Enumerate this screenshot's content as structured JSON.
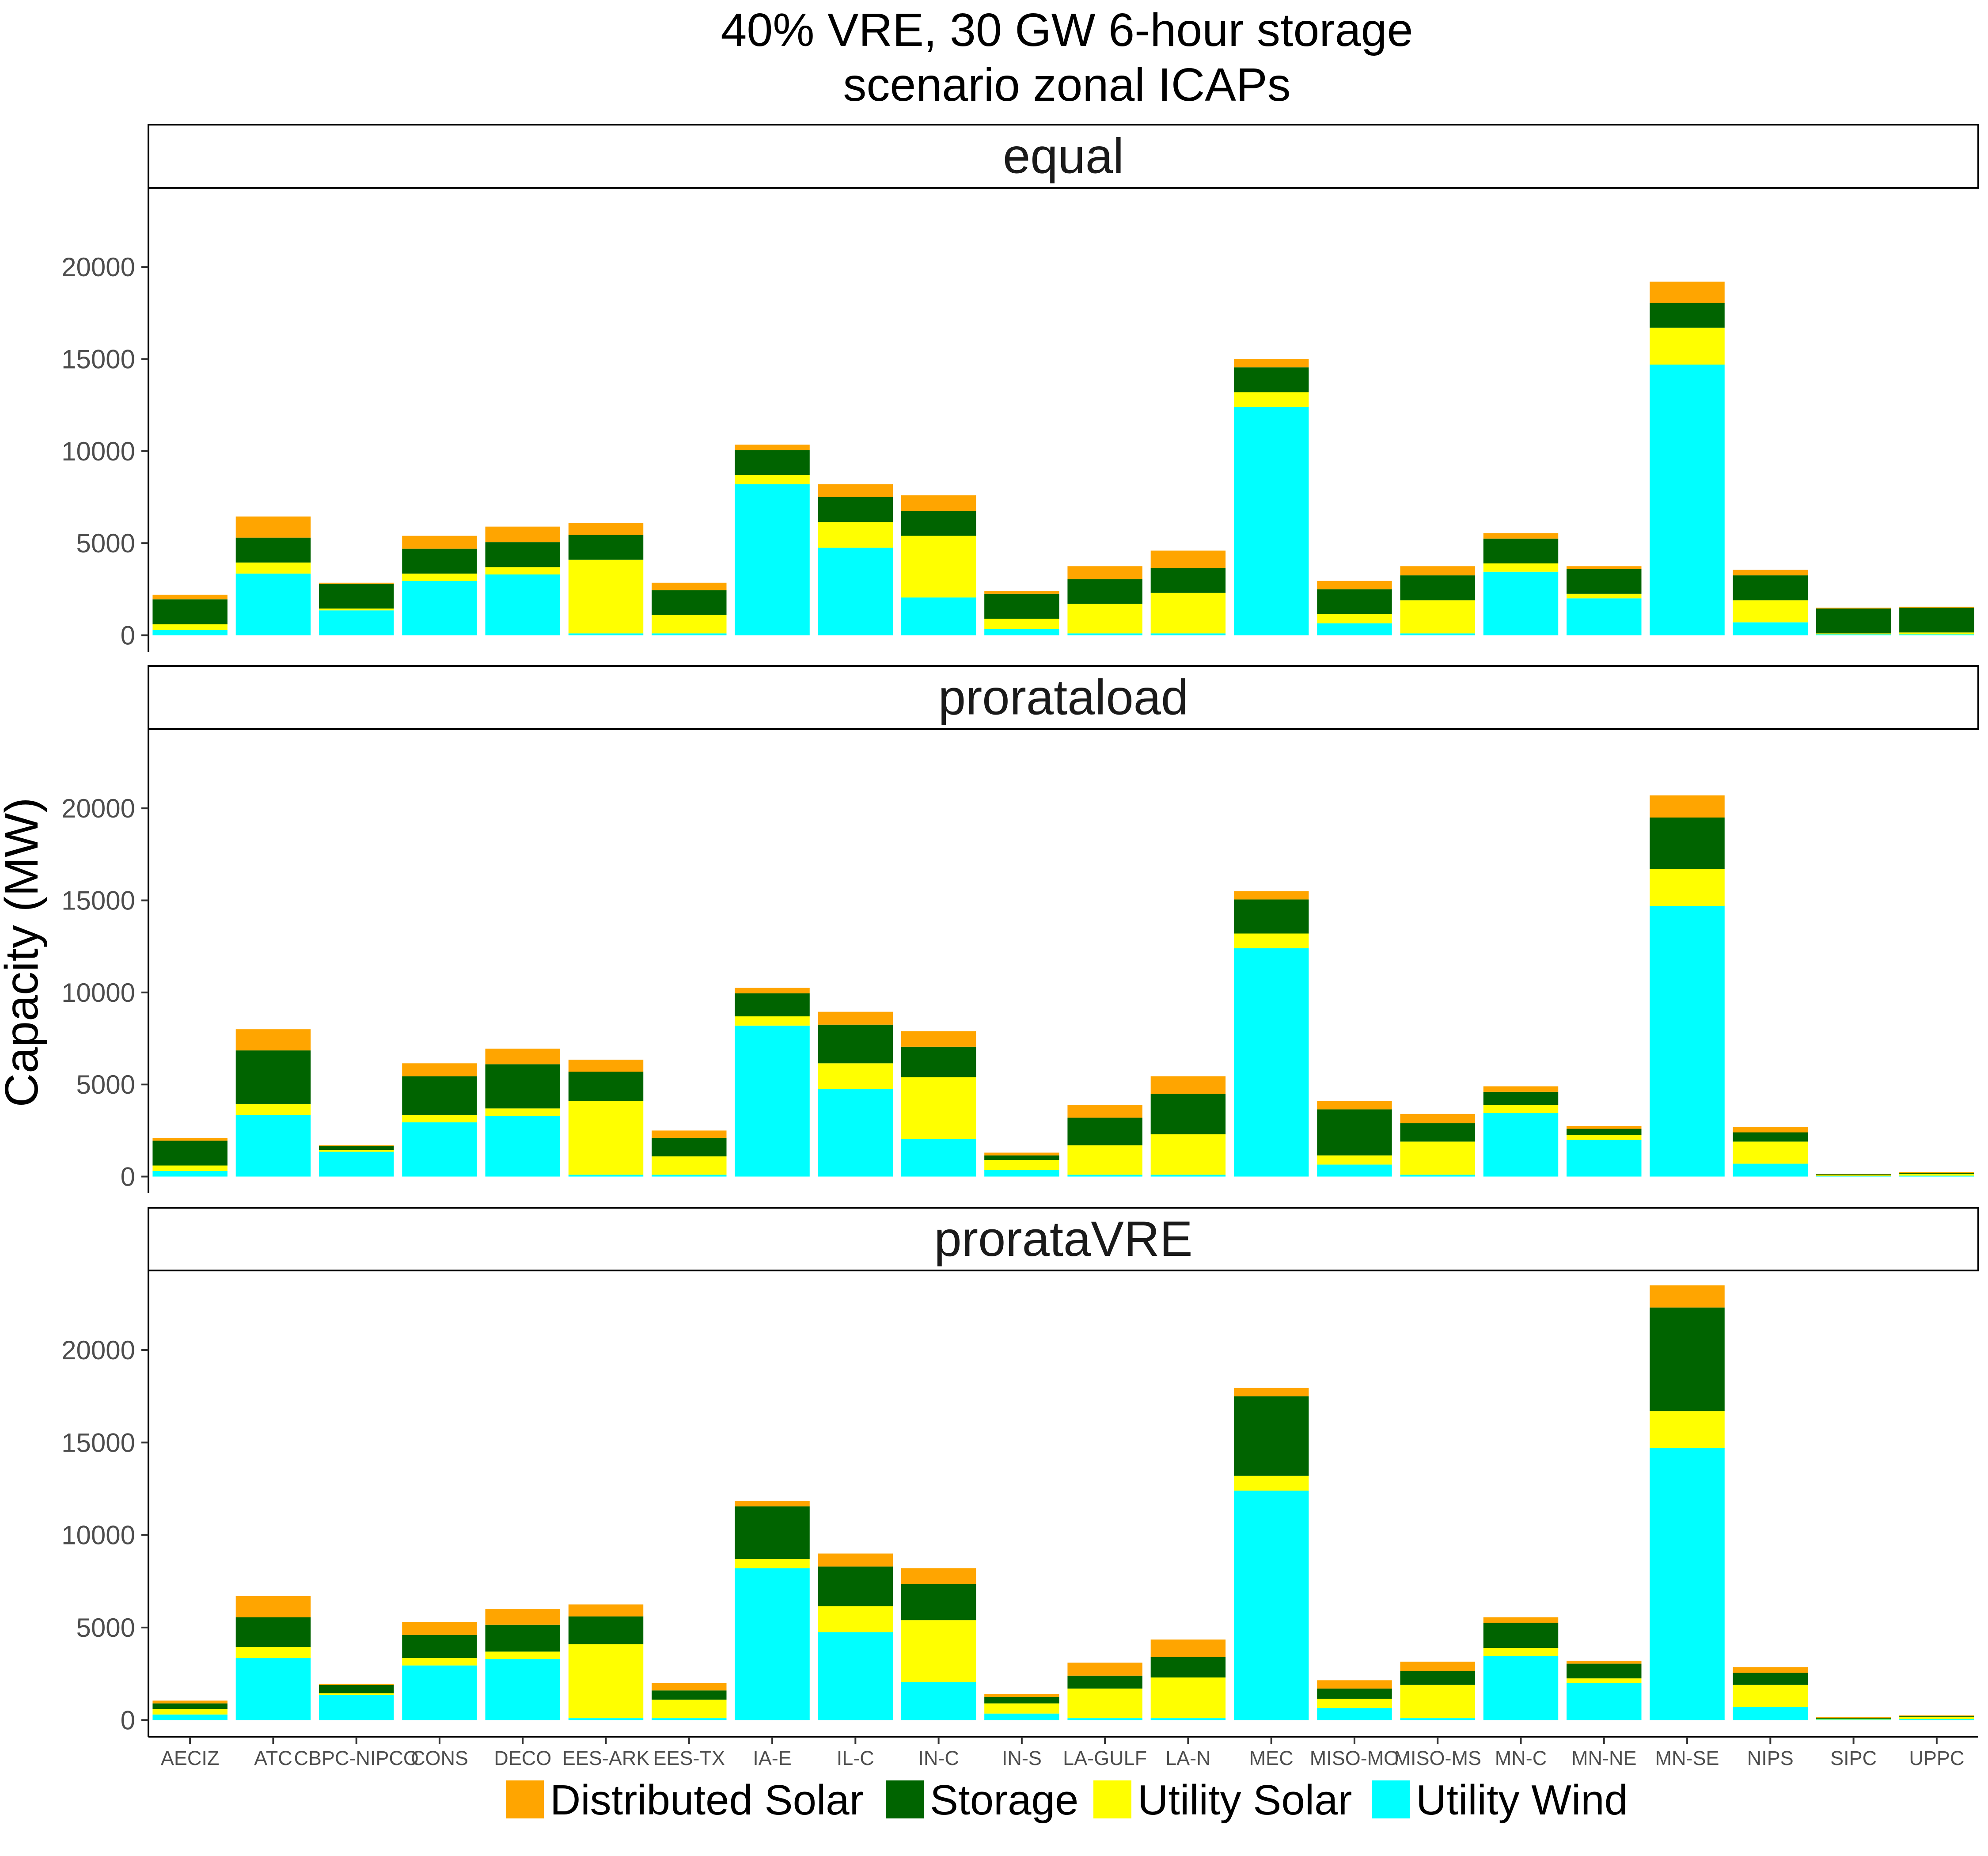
{
  "chart_data": {
    "type": "bar",
    "stacked": true,
    "title": [
      "40% VRE, 30 GW 6-hour storage",
      "scenario zonal ICAPs"
    ],
    "ylabel": "Capacity (MW)",
    "xlabel": "",
    "ylim": [
      -900,
      24300
    ],
    "yticks": [
      0,
      5000,
      10000,
      15000,
      20000
    ],
    "grid": false,
    "legend_position": "bottom",
    "categories": [
      "AECIZ",
      "ATC",
      "CBPC-NIPCO",
      "CONS",
      "DECO",
      "EES-ARK",
      "EES-TX",
      "IA-E",
      "IL-C",
      "IN-C",
      "IN-S",
      "LA-GULF",
      "LA-N",
      "MEC",
      "MISO-MO",
      "MISO-MS",
      "MN-C",
      "MN-NE",
      "MN-SE",
      "NIPS",
      "SIPC",
      "UPPC"
    ],
    "series_order": [
      "Utility Wind",
      "Utility Solar",
      "Storage",
      "Distributed Solar"
    ],
    "legend": [
      "Distributed Solar",
      "Storage",
      "Utility Solar",
      "Utility Wind"
    ],
    "colors": {
      "Distributed Solar": "#FFA500",
      "Storage": "#006400",
      "Utility Solar": "#FFFF00",
      "Utility Wind": "#00FFFF"
    },
    "panels": [
      {
        "name": "equal",
        "series": [
          {
            "name": "Utility Wind",
            "values": [
              300,
              3350,
              1350,
              2950,
              3300,
              100,
              100,
              8200,
              4750,
              2050,
              350,
              100,
              100,
              12400,
              650,
              100,
              3450,
              2000,
              14700,
              700,
              50,
              50
            ]
          },
          {
            "name": "Utility Solar",
            "values": [
              300,
              600,
              100,
              400,
              400,
              4000,
              1000,
              500,
              1400,
              3350,
              550,
              1600,
              2200,
              800,
              500,
              1800,
              450,
              250,
              2000,
              1200,
              50,
              100
            ]
          },
          {
            "name": "Storage",
            "values": [
              1350,
              1350,
              1350,
              1350,
              1350,
              1350,
              1350,
              1350,
              1350,
              1350,
              1350,
              1350,
              1350,
              1350,
              1350,
              1350,
              1350,
              1350,
              1350,
              1350,
              1350,
              1350
            ]
          },
          {
            "name": "Distributed Solar",
            "values": [
              250,
              1150,
              50,
              700,
              850,
              650,
              400,
              300,
              700,
              850,
              150,
              700,
              950,
              450,
              450,
              500,
              300,
              150,
              1150,
              300,
              50,
              50
            ]
          }
        ]
      },
      {
        "name": "prorataload",
        "series": [
          {
            "name": "Utility Wind",
            "values": [
              300,
              3350,
              1350,
              2950,
              3300,
              100,
              100,
              8200,
              4750,
              2050,
              350,
              100,
              100,
              12400,
              650,
              100,
              3450,
              2000,
              14700,
              700,
              30,
              50
            ]
          },
          {
            "name": "Utility Solar",
            "values": [
              300,
              600,
              100,
              400,
              400,
              4000,
              1000,
              500,
              1400,
              3350,
              550,
              1600,
              2200,
              800,
              500,
              1800,
              450,
              250,
              2000,
              1200,
              40,
              100
            ]
          },
          {
            "name": "Storage",
            "values": [
              1350,
              2900,
              200,
              2100,
              2400,
              1600,
              1000,
              1250,
              2100,
              1650,
              250,
              1500,
              2200,
              1850,
              2500,
              1000,
              700,
              350,
              2800,
              500,
              50,
              50
            ]
          },
          {
            "name": "Distributed Solar",
            "values": [
              150,
              1150,
              50,
              700,
              850,
              650,
              400,
              300,
              700,
              850,
              150,
              700,
              950,
              450,
              450,
              500,
              300,
              150,
              1200,
              300,
              30,
              50
            ]
          }
        ]
      },
      {
        "name": "prorataVRE",
        "series": [
          {
            "name": "Utility Wind",
            "values": [
              300,
              3350,
              1350,
              2950,
              3300,
              100,
              100,
              8200,
              4750,
              2050,
              350,
              100,
              100,
              12400,
              650,
              100,
              3450,
              2000,
              14700,
              700,
              30,
              50
            ]
          },
          {
            "name": "Utility Solar",
            "values": [
              300,
              600,
              100,
              400,
              400,
              4000,
              1000,
              500,
              1400,
              3350,
              550,
              1600,
              2200,
              800,
              500,
              1800,
              450,
              250,
              2000,
              1200,
              40,
              100
            ]
          },
          {
            "name": "Storage",
            "values": [
              300,
              1600,
              450,
              1250,
              1450,
              1500,
              500,
              2850,
              2150,
              1950,
              350,
              700,
              1100,
              4300,
              550,
              750,
              1350,
              800,
              5600,
              650,
              50,
              50
            ]
          },
          {
            "name": "Distributed Solar",
            "values": [
              150,
              1150,
              50,
              700,
              850,
              650,
              400,
              300,
              700,
              850,
              150,
              700,
              950,
              450,
              450,
              500,
              300,
              150,
              1200,
              300,
              30,
              50
            ]
          }
        ]
      }
    ]
  }
}
